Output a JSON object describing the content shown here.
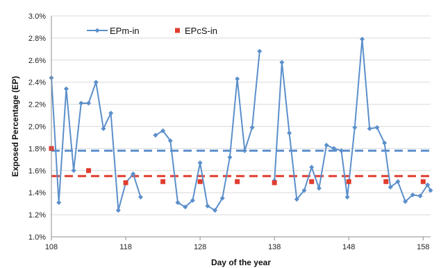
{
  "chart_data": {
    "type": "line",
    "xlabel": "Day of the year",
    "ylabel": "Exposed Percentage (EP)",
    "xlim": [
      108,
      159
    ],
    "ylim": [
      1.0,
      3.0
    ],
    "x_ticks": [
      "108",
      "118",
      "128",
      "138",
      "148",
      "158"
    ],
    "y_ticks": [
      "1.0%",
      "1.2%",
      "1.4%",
      "1.6%",
      "1.8%",
      "2.0%",
      "2.2%",
      "2.4%",
      "2.6%",
      "2.8%",
      "3.0%"
    ],
    "grid": "horizontal",
    "legend_position": "top-left",
    "series": [
      {
        "name": "EPm-in",
        "style": "line-diamond",
        "color": "#5b8fcb",
        "segments": [
          [
            [
              108,
              2.44
            ],
            [
              109,
              1.31
            ],
            [
              110,
              2.34
            ],
            [
              111,
              1.6
            ],
            [
              112,
              2.21
            ],
            [
              113,
              2.21
            ],
            [
              114,
              2.4
            ],
            [
              115,
              1.98
            ],
            [
              116,
              2.12
            ],
            [
              117,
              1.24
            ],
            [
              118,
              1.49
            ],
            [
              119,
              1.57
            ],
            [
              120,
              1.36
            ]
          ],
          [
            [
              122,
              1.92
            ],
            [
              123,
              1.96
            ],
            [
              124,
              1.87
            ],
            [
              125,
              1.31
            ],
            [
              126,
              1.27
            ],
            [
              127,
              1.33
            ],
            [
              128,
              1.67
            ],
            [
              129,
              1.28
            ],
            [
              130,
              1.24
            ],
            [
              131,
              1.35
            ],
            [
              132,
              1.72
            ],
            [
              133,
              2.43
            ],
            [
              134,
              1.78
            ],
            [
              135,
              1.99
            ],
            [
              136,
              2.68
            ]
          ],
          [
            [
              138,
              1.51
            ],
            [
              139,
              2.58
            ],
            [
              140,
              1.94
            ],
            [
              141,
              1.34
            ],
            [
              142,
              1.42
            ],
            [
              143,
              1.63
            ],
            [
              144,
              1.44
            ],
            [
              145,
              1.83
            ],
            [
              146,
              1.8
            ],
            [
              147,
              1.78
            ],
            [
              147.8,
              1.36
            ],
            [
              148.8,
              1.99
            ],
            [
              149.8,
              2.79
            ],
            [
              150.8,
              1.98
            ],
            [
              151.8,
              1.99
            ],
            [
              152.8,
              1.85
            ],
            [
              153.6,
              1.45
            ],
            [
              154.6,
              1.5
            ],
            [
              155.6,
              1.32
            ],
            [
              156.6,
              1.38
            ],
            [
              157.6,
              1.37
            ],
            [
              158.6,
              1.47
            ],
            [
              159,
              1.42
            ]
          ]
        ]
      },
      {
        "name": "EPcS-in",
        "style": "square-marker",
        "color": "#e03c2e",
        "points": [
          [
            108,
            1.8
          ],
          [
            113,
            1.6
          ],
          [
            118,
            1.49
          ],
          [
            123,
            1.5
          ],
          [
            128,
            1.5
          ],
          [
            133,
            1.5
          ],
          [
            138,
            1.49
          ],
          [
            143,
            1.5
          ],
          [
            148,
            1.5
          ],
          [
            153,
            1.5
          ],
          [
            158,
            1.5
          ]
        ]
      }
    ],
    "reference_lines": [
      {
        "series": "EPm-in",
        "value": 1.78,
        "style": "dashed",
        "color": "#5b8fcb"
      },
      {
        "series": "EPcS-in",
        "value": 1.55,
        "style": "dashed",
        "color": "#e03c2e"
      }
    ]
  }
}
